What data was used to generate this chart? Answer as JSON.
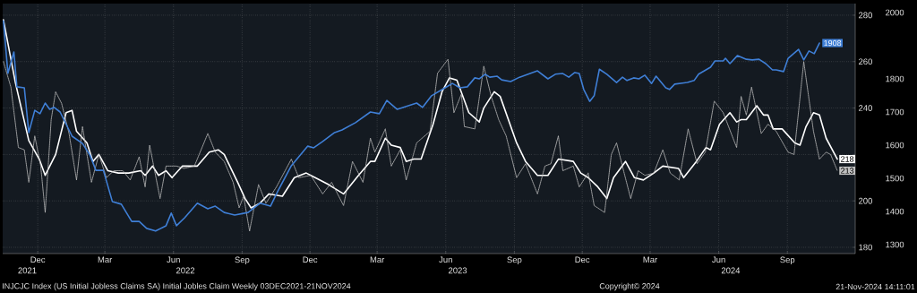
{
  "chart_data": {
    "type": "line",
    "xlim": [
      "2021-10-29",
      "2024-12-15"
    ],
    "xticks": [
      {
        "value": "2021-12-15",
        "label": "Dec"
      },
      {
        "value": "2022-03-15",
        "label": "Mar"
      },
      {
        "value": "2022-06-15",
        "label": "Jun"
      },
      {
        "value": "2022-09-15",
        "label": "Sep"
      },
      {
        "value": "2022-12-15",
        "label": "Dec"
      },
      {
        "value": "2023-03-15",
        "label": "Mar"
      },
      {
        "value": "2023-06-15",
        "label": "Jun"
      },
      {
        "value": "2023-09-15",
        "label": "Sep"
      },
      {
        "value": "2023-12-15",
        "label": "Dec"
      },
      {
        "value": "2024-03-15",
        "label": "Mar"
      },
      {
        "value": "2024-06-15",
        "label": "Jun"
      },
      {
        "value": "2024-09-15",
        "label": "Sep"
      }
    ],
    "x2lim": [
      "2021-10-29",
      "2024-12-15"
    ],
    "x2ticks": [
      {
        "value": "2021-12-01",
        "label": "2021"
      },
      {
        "value": "2022-07-01",
        "label": "2022"
      },
      {
        "value": "2023-07-01",
        "label": "2023"
      },
      {
        "value": "2024-07-01",
        "label": "2024"
      }
    ],
    "ylim": [
      177.3,
      285
    ],
    "yticks": [
      180,
      200,
      {
        "value": 220,
        "label": null
      },
      240,
      260,
      280
    ],
    "y2lim": [
      1273,
      2027
    ],
    "y2ticks": [
      1300,
      1400,
      1500,
      1600,
      1700,
      1800,
      2000
    ],
    "grid": true,
    "annotations": [
      "INJCJC Index (US Initial Jobless Claims SA) Initial Jobles Claim Weekly 03DEC2021-21NOV2024",
      "Copyright© 2024",
      "21-Nov-2024 14:11:01"
    ],
    "series": [
      {
        "color": "#3f7fd6",
        "axis": "y2",
        "line_style": "solid",
        "x": [
          "2021-10-30",
          "2021-11-05",
          "2021-11-13",
          "2021-11-17",
          "2021-11-27",
          "2021-12-03",
          "2021-12-11",
          "2021-12-18",
          "2021-12-25",
          "2021-12-31",
          "2022-01-06",
          "2022-01-14",
          "2022-01-30",
          "2022-02-13",
          "2022-02-23",
          "2022-03-03",
          "2022-03-13",
          "2022-03-25",
          "2022-04-06",
          "2022-04-20",
          "2022-04-30",
          "2022-05-10",
          "2022-05-22",
          "2022-06-05",
          "2022-06-12",
          "2022-06-19",
          "2022-06-30",
          "2022-07-17",
          "2022-07-31",
          "2022-08-10",
          "2022-08-22",
          "2022-09-05",
          "2022-09-23",
          "2022-10-09",
          "2022-10-23",
          "2022-11-02",
          "2022-11-20",
          "2022-12-12",
          "2022-12-20",
          "2023-01-01",
          "2023-01-17",
          "2023-01-27",
          "2023-02-14",
          "2023-03-06",
          "2023-03-18",
          "2023-03-28",
          "2023-04-11",
          "2023-05-07",
          "2023-05-15",
          "2023-05-27",
          "2023-06-14",
          "2023-06-24",
          "2023-07-04",
          "2023-07-14",
          "2023-07-24",
          "2023-07-30",
          "2023-08-07",
          "2023-08-13",
          "2023-08-23",
          "2023-08-29",
          "2023-09-10",
          "2023-09-22",
          "2023-10-16",
          "2023-10-30",
          "2023-11-09",
          "2023-11-19",
          "2023-11-27",
          "2023-12-05",
          "2023-12-11",
          "2023-12-17",
          "2023-12-25",
          "2023-12-31",
          "2024-01-07",
          "2024-01-17",
          "2024-01-30",
          "2024-02-07",
          "2024-02-13",
          "2024-02-22",
          "2024-02-29",
          "2024-03-08",
          "2024-03-17",
          "2024-03-23",
          "2024-04-05",
          "2024-04-10",
          "2024-04-17",
          "2024-05-04",
          "2024-05-13",
          "2024-05-19",
          "2024-06-04",
          "2024-06-10",
          "2024-06-21",
          "2024-06-24",
          "2024-06-30",
          "2024-07-10",
          "2024-07-22",
          "2024-07-30",
          "2024-08-08",
          "2024-08-17",
          "2024-08-26",
          "2024-08-31",
          "2024-09-10",
          "2024-09-16",
          "2024-09-30",
          "2024-10-07",
          "2024-10-14",
          "2024-10-21",
          "2024-10-28"
        ],
        "values": [
          1975,
          1817,
          1881,
          1776,
          1773,
          1638,
          1705,
          1695,
          1727,
          1708,
          1714,
          1700,
          1627,
          1605,
          1570,
          1524,
          1524,
          1430,
          1422,
          1370,
          1370,
          1349,
          1341,
          1357,
          1395,
          1357,
          1381,
          1425,
          1408,
          1416,
          1397,
          1389,
          1397,
          1425,
          1416,
          1462,
          1538,
          1597,
          1592,
          1611,
          1638,
          1646,
          1668,
          1700,
          1695,
          1735,
          1708,
          1727,
          1714,
          1749,
          1773,
          1786,
          1773,
          1776,
          1803,
          1800,
          1814,
          1805,
          1808,
          1797,
          1792,
          1805,
          1824,
          1800,
          1814,
          1816,
          1805,
          1819,
          1816,
          1768,
          1732,
          1749,
          1829,
          1814,
          1789,
          1805,
          1795,
          1803,
          1800,
          1811,
          1786,
          1808,
          1773,
          1768,
          1784,
          1789,
          1795,
          1814,
          1835,
          1854,
          1854,
          1862,
          1846,
          1870,
          1859,
          1857,
          1859,
          1846,
          1827,
          1827,
          1822,
          1862,
          1889,
          1857,
          1884,
          1876,
          1908
        ],
        "value_labels": [
          null,
          null,
          null,
          null,
          null,
          null,
          null,
          null,
          null,
          null,
          null,
          null,
          null,
          null,
          null,
          null,
          null,
          null,
          null,
          null,
          null,
          null,
          null,
          null,
          null,
          null,
          null,
          null,
          null,
          null,
          null,
          null,
          null,
          null,
          null,
          null,
          null,
          null,
          null,
          null,
          null,
          null,
          null,
          null,
          null,
          null,
          null,
          null,
          null,
          null,
          null,
          null,
          null,
          null,
          null,
          null,
          null,
          null,
          null,
          null,
          null,
          null,
          null,
          null,
          null,
          null,
          null,
          null,
          null,
          null,
          null,
          null,
          null,
          null,
          null,
          null,
          null,
          null,
          null,
          null,
          null,
          null,
          null,
          null,
          null,
          null,
          null,
          null,
          null,
          null,
          null,
          null,
          null,
          null,
          null,
          null,
          null,
          null,
          null,
          null,
          null,
          null,
          null,
          null,
          null,
          null,
          "1908"
        ]
      },
      {
        "color": "#ffffff",
        "line_style": "solid",
        "x": [
          "2021-10-30",
          "2021-11-15",
          "2021-12-03",
          "2021-12-17",
          "2021-12-25",
          "2022-01-08",
          "2022-01-22",
          "2022-01-30",
          "2022-02-05",
          "2022-02-19",
          "2022-02-27",
          "2022-03-07",
          "2022-03-19",
          "2022-04-02",
          "2022-04-16",
          "2022-05-02",
          "2022-05-08",
          "2022-05-18",
          "2022-05-26",
          "2022-06-05",
          "2022-06-13",
          "2022-06-27",
          "2022-07-17",
          "2022-08-02",
          "2022-08-14",
          "2022-08-22",
          "2022-09-09",
          "2022-09-19",
          "2022-09-27",
          "2022-10-09",
          "2022-10-21",
          "2022-11-08",
          "2022-11-24",
          "2022-12-10",
          "2022-12-22",
          "2023-01-09",
          "2023-01-29",
          "2023-02-18",
          "2023-03-06",
          "2023-03-12",
          "2023-03-26",
          "2023-04-03",
          "2023-04-15",
          "2023-04-23",
          "2023-05-03",
          "2023-05-13",
          "2023-05-29",
          "2023-06-10",
          "2023-06-20",
          "2023-06-30",
          "2023-07-16",
          "2023-07-30",
          "2023-08-05",
          "2023-08-19",
          "2023-08-27",
          "2023-09-18",
          "2023-09-30",
          "2023-10-16",
          "2023-10-30",
          "2023-11-13",
          "2023-12-03",
          "2023-12-13",
          "2023-12-23",
          "2024-01-05",
          "2024-01-17",
          "2024-01-26",
          "2024-02-11",
          "2024-02-23",
          "2024-03-06",
          "2024-03-20",
          "2024-04-01",
          "2024-04-22",
          "2024-04-29",
          "2024-05-16",
          "2024-05-29",
          "2024-06-04",
          "2024-06-16",
          "2024-06-30",
          "2024-07-09",
          "2024-07-15",
          "2024-07-22",
          "2024-08-05",
          "2024-08-14",
          "2024-08-20",
          "2024-08-27",
          "2024-09-08",
          "2024-09-25",
          "2024-10-02",
          "2024-10-10",
          "2024-10-20",
          "2024-10-28",
          "2024-11-06",
          "2024-11-21"
        ],
        "values": [
          278,
          251,
          226,
          218,
          211,
          220,
          238,
          239,
          230,
          225,
          217,
          220,
          213,
          212,
          212,
          213,
          211,
          215,
          211,
          213,
          210,
          215,
          215,
          221,
          222,
          220,
          208,
          201,
          197,
          199,
          203,
          202,
          210,
          212,
          210,
          207,
          203,
          211,
          217,
          217,
          227,
          224,
          223,
          217,
          218,
          218,
          233,
          247,
          253,
          252,
          238,
          234,
          240,
          247,
          245,
          225,
          217,
          211,
          211,
          218,
          217,
          212,
          210,
          206,
          201,
          210,
          217,
          210,
          209,
          212,
          215,
          214,
          210,
          217,
          223,
          222,
          233,
          238,
          234,
          235,
          235,
          241,
          237,
          237,
          231,
          231,
          225,
          224,
          232,
          238,
          237,
          227,
          218
        ],
        "value_labels": [
          null,
          null,
          null,
          null,
          null,
          null,
          null,
          null,
          null,
          null,
          null,
          null,
          null,
          null,
          null,
          null,
          null,
          null,
          null,
          null,
          null,
          null,
          null,
          null,
          null,
          null,
          null,
          null,
          null,
          null,
          null,
          null,
          null,
          null,
          null,
          null,
          null,
          null,
          null,
          null,
          null,
          null,
          null,
          null,
          null,
          null,
          null,
          null,
          null,
          null,
          null,
          null,
          null,
          null,
          null,
          null,
          null,
          null,
          null,
          null,
          null,
          null,
          null,
          null,
          null,
          null,
          null,
          null,
          null,
          null,
          null,
          null,
          null,
          null,
          null,
          null,
          null,
          null,
          null,
          null,
          null,
          null,
          null,
          null,
          null,
          null,
          null,
          null,
          null,
          null,
          null,
          null,
          "218"
        ]
      },
      {
        "color": "#bfbfbf",
        "line_style": "dotted",
        "x": [
          "2021-10-30",
          "2021-11-09",
          "2021-11-19",
          "2021-11-27",
          "2021-12-03",
          "2021-12-11",
          "2021-12-19",
          "2021-12-25",
          "2022-01-02",
          "2022-01-08",
          "2022-01-16",
          "2022-01-26",
          "2022-02-05",
          "2022-02-13",
          "2022-02-25",
          "2022-03-07",
          "2022-03-17",
          "2022-03-27",
          "2022-04-08",
          "2022-04-18",
          "2022-04-30",
          "2022-05-08",
          "2022-05-14",
          "2022-05-28",
          "2022-06-05",
          "2022-06-19",
          "2022-06-29",
          "2022-07-13",
          "2022-07-31",
          "2022-08-10",
          "2022-08-22",
          "2022-09-03",
          "2022-09-11",
          "2022-09-17",
          "2022-09-25",
          "2022-10-07",
          "2022-10-17",
          "2022-10-31",
          "2022-11-20",
          "2022-11-30",
          "2022-12-16",
          "2023-01-01",
          "2023-01-13",
          "2023-01-29",
          "2023-02-10",
          "2023-02-24",
          "2023-03-06",
          "2023-03-12",
          "2023-03-26",
          "2023-04-03",
          "2023-04-15",
          "2023-04-23",
          "2023-05-07",
          "2023-05-25",
          "2023-06-04",
          "2023-06-18",
          "2023-06-26",
          "2023-07-06",
          "2023-07-10",
          "2023-07-24",
          "2023-08-05",
          "2023-08-15",
          "2023-08-25",
          "2023-09-04",
          "2023-09-18",
          "2023-09-30",
          "2023-10-16",
          "2023-10-26",
          "2023-11-03",
          "2023-11-13",
          "2023-11-19",
          "2023-12-03",
          "2023-12-11",
          "2023-12-23",
          "2023-12-31",
          "2024-01-14",
          "2024-01-23",
          "2024-01-30",
          "2024-02-10",
          "2024-02-18",
          "2024-02-28",
          "2024-03-08",
          "2024-03-20",
          "2024-04-01",
          "2024-04-11",
          "2024-04-23",
          "2024-05-05",
          "2024-05-17",
          "2024-05-28",
          "2024-06-09",
          "2024-06-21",
          "2024-07-09",
          "2024-07-15",
          "2024-07-22",
          "2024-07-29",
          "2024-08-11",
          "2024-08-20",
          "2024-08-31",
          "2024-09-16",
          "2024-09-24",
          "2024-10-07",
          "2024-10-20",
          "2024-10-28",
          "2024-11-06",
          "2024-11-12",
          "2024-11-21"
        ],
        "values": [
          260,
          249,
          223,
          222,
          208,
          228,
          215,
          195,
          235,
          247,
          242,
          229,
          209,
          232,
          208,
          220,
          210,
          213,
          213,
          209,
          219,
          206,
          224,
          201,
          215,
          215,
          214,
          215,
          229,
          221,
          217,
          208,
          197,
          202,
          187,
          207,
          199,
          206,
          218,
          210,
          211,
          203,
          208,
          198,
          217,
          208,
          227,
          221,
          231,
          215,
          222,
          209,
          225,
          230,
          255,
          261,
          238,
          246,
          232,
          231,
          258,
          245,
          235,
          228,
          210,
          216,
          203,
          215,
          216,
          228,
          213,
          215,
          206,
          212,
          198,
          195,
          220,
          225,
          211,
          201,
          213,
          211,
          212,
          222,
          212,
          209,
          231,
          216,
          221,
          243,
          238,
          223,
          245,
          237,
          249,
          229,
          233,
          230,
          221,
          220,
          260,
          230,
          218,
          221,
          220,
          213
        ],
        "value_labels": [
          null,
          null,
          null,
          null,
          null,
          null,
          null,
          null,
          null,
          null,
          null,
          null,
          null,
          null,
          null,
          null,
          null,
          null,
          null,
          null,
          null,
          null,
          null,
          null,
          null,
          null,
          null,
          null,
          null,
          null,
          null,
          null,
          null,
          null,
          null,
          null,
          null,
          null,
          null,
          null,
          null,
          null,
          null,
          null,
          null,
          null,
          null,
          null,
          null,
          null,
          null,
          null,
          null,
          null,
          null,
          null,
          null,
          null,
          null,
          null,
          null,
          null,
          null,
          null,
          null,
          null,
          null,
          null,
          null,
          null,
          null,
          null,
          null,
          null,
          null,
          null,
          null,
          null,
          null,
          null,
          null,
          null,
          null,
          null,
          null,
          null,
          null,
          null,
          null,
          null,
          null,
          null,
          null,
          null,
          null,
          null,
          null,
          null,
          null,
          null,
          null,
          null,
          null,
          null,
          null,
          "213"
        ]
      }
    ]
  }
}
